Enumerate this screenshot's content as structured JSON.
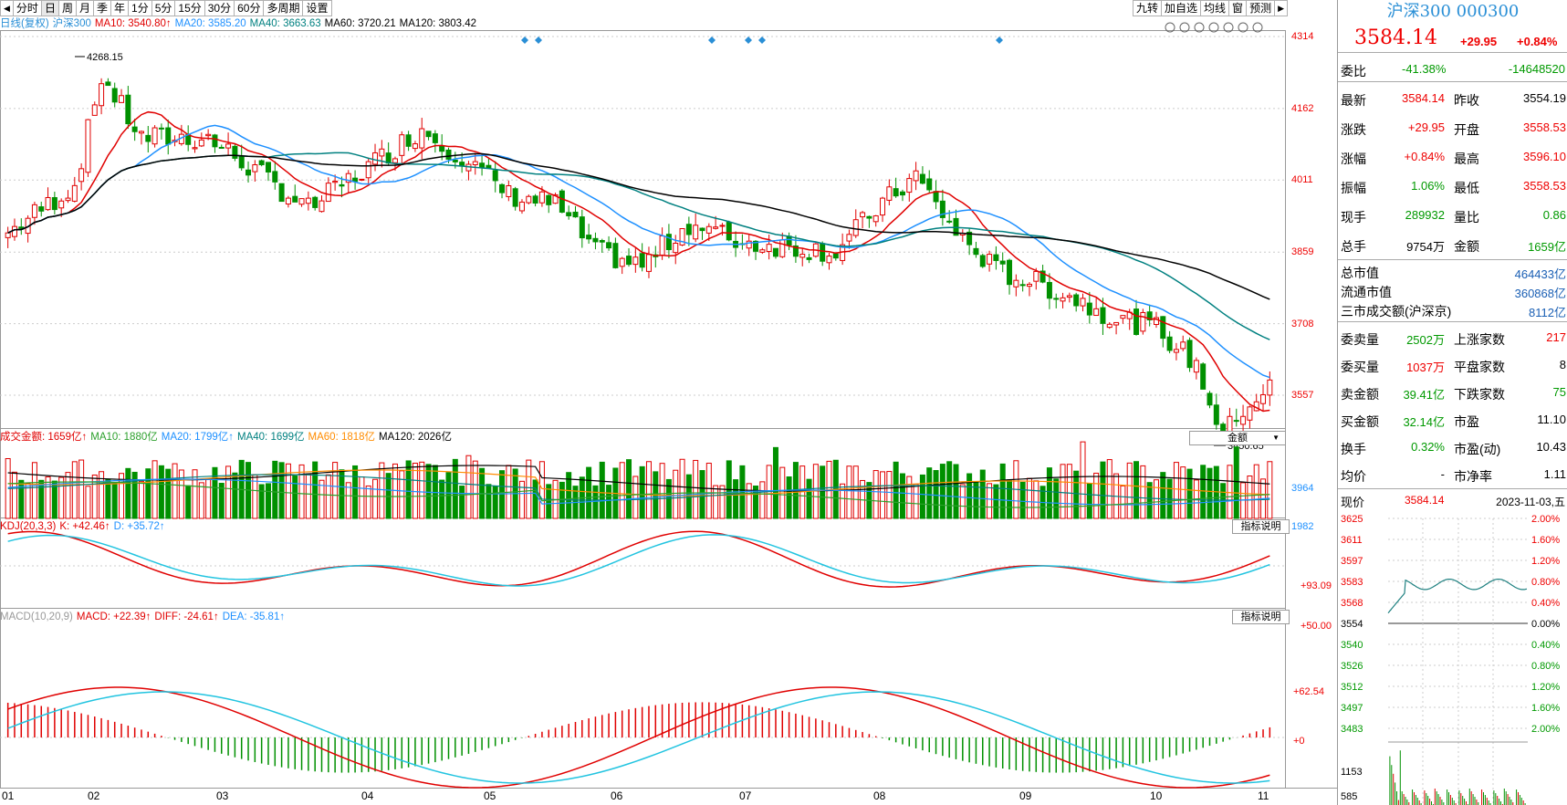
{
  "toolbar": {
    "first_icon": "◀",
    "tabs": [
      "分时",
      "日",
      "周",
      "月",
      "季",
      "年",
      "1分",
      "5分",
      "15分",
      "30分",
      "60分",
      "多周期",
      "设置"
    ],
    "right": [
      "九转",
      "加自选",
      "均线",
      "窗",
      "预测"
    ],
    "last_icon": "▶",
    "active": 1
  },
  "main_legend": {
    "items": [
      {
        "text": "日线(复权)",
        "color": "#2a8fd6"
      },
      {
        "text": "沪深300",
        "color": "#2a8fd6"
      },
      {
        "text": "MA10: 3540.80↑",
        "color": "#e00000"
      },
      {
        "text": "MA20: 3585.20",
        "color": "#1e90ff"
      },
      {
        "text": "MA40: 3663.63",
        "color": "#008080"
      },
      {
        "text": "MA60: 3720.21",
        "color": "#000000"
      },
      {
        "text": "MA120: 3803.42",
        "color": "#000000"
      }
    ]
  },
  "chart_icons": [
    "eye-icon",
    "hand-icon",
    "undo-icon",
    "scissors-icon",
    "window-icon",
    "zoom-in-icon",
    "zoom-out-icon"
  ],
  "price_axis": [
    {
      "label": "4314",
      "v": 4314
    },
    {
      "label": "4162",
      "v": 4162
    },
    {
      "label": "4011",
      "v": 4011
    },
    {
      "label": "3859",
      "v": 3859
    },
    {
      "label": "3708",
      "v": 3708
    },
    {
      "label": "3557",
      "v": 3557
    }
  ],
  "annotations": {
    "high": "4268.15",
    "low": "3450.65"
  },
  "vol_legend": {
    "items": [
      {
        "text": "成交金额: 1659亿↑",
        "color": "#e00000"
      },
      {
        "text": "MA10: 1880亿",
        "color": "#2ca02c"
      },
      {
        "text": "MA20: 1799亿↑",
        "color": "#1e90ff"
      },
      {
        "text": "MA40: 1699亿",
        "color": "#008080"
      },
      {
        "text": "MA60: 1818亿",
        "color": "#ff8c00"
      },
      {
        "text": "MA120: 2026亿",
        "color": "#000000"
      }
    ],
    "selector": "金额",
    "selector_arrow": "▼"
  },
  "vol_axis": [
    "3964",
    "1982"
  ],
  "kdj_legend": {
    "items": [
      {
        "text": "KDJ(20,3,3)",
        "color": "#e00000"
      },
      {
        "text": "K: +42.46↑",
        "color": "#e00000"
      },
      {
        "text": "D: +35.72↑",
        "color": "#1e90ff"
      }
    ],
    "button": "指标说明"
  },
  "kdj_axis": [
    "+93.09",
    "+50.00"
  ],
  "macd_legend": {
    "items": [
      {
        "text": "MACD(10,20,9)",
        "color": "#999999"
      },
      {
        "text": "MACD: +22.39↑",
        "color": "#e00000"
      },
      {
        "text": "DIFF: -24.61↑",
        "color": "#e00000"
      },
      {
        "text": "DEA: -35.81↑",
        "color": "#1e90ff"
      }
    ],
    "button": "指标说明"
  },
  "macd_axis": [
    "+62.54",
    "+0"
  ],
  "x_axis": [
    "01",
    "02",
    "03",
    "04",
    "05",
    "06",
    "07",
    "08",
    "09",
    "10",
    "11"
  ],
  "right_panel": {
    "title": "沪深300 000300",
    "price": "3584.14",
    "change": "+29.95",
    "pct": "+0.84%",
    "weibi": {
      "label": "委比",
      "pct": "-41.38%",
      "val": "-14648520"
    },
    "quote": [
      [
        "最新",
        "3584.14",
        "r",
        "昨收",
        "3554.19",
        "k"
      ],
      [
        "涨跌",
        "+29.95",
        "r",
        "开盘",
        "3558.53",
        "r"
      ],
      [
        "涨幅",
        "+0.84%",
        "r",
        "最高",
        "3596.10",
        "r"
      ],
      [
        "振幅",
        "1.06%",
        "g",
        "最低",
        "3558.53",
        "r"
      ],
      [
        "现手",
        "289932",
        "g",
        "量比",
        "0.86",
        "g"
      ],
      [
        "总手",
        "9754万",
        "k",
        "金额",
        "1659亿",
        "g"
      ]
    ],
    "mkt": [
      [
        "总市值",
        "464433亿"
      ],
      [
        "流通市值",
        "360868亿"
      ],
      [
        "三市成交额(沪深京)",
        "8112亿"
      ]
    ],
    "orders": [
      [
        "委卖量",
        "2502万",
        "g",
        "上涨家数",
        "217",
        "r"
      ],
      [
        "委买量",
        "1037万",
        "r",
        "平盘家数",
        "8",
        "k"
      ],
      [
        "卖金额",
        "39.41亿",
        "g",
        "下跌家数",
        "75",
        "g"
      ],
      [
        "买金额",
        "32.14亿",
        "g",
        "市盈",
        "11.10",
        "k"
      ],
      [
        "换手",
        "0.32%",
        "g",
        "市盈(动)",
        "10.43",
        "k"
      ],
      [
        "均价",
        "-",
        "k",
        "市净率",
        "1.11",
        "k"
      ]
    ],
    "mini": {
      "label": "现价",
      "price": "3584.14",
      "date": "2023-11-03,五",
      "left": [
        "3625",
        "3611",
        "3597",
        "3583",
        "3568",
        "3554",
        "3540",
        "3526",
        "3512",
        "3497",
        "3483",
        "1153",
        "585"
      ],
      "right": [
        "2.00%",
        "1.60%",
        "1.20%",
        "0.80%",
        "0.40%",
        "0.00%",
        "0.40%",
        "0.80%",
        "1.20%",
        "1.60%",
        "2.00%"
      ]
    }
  }
}
